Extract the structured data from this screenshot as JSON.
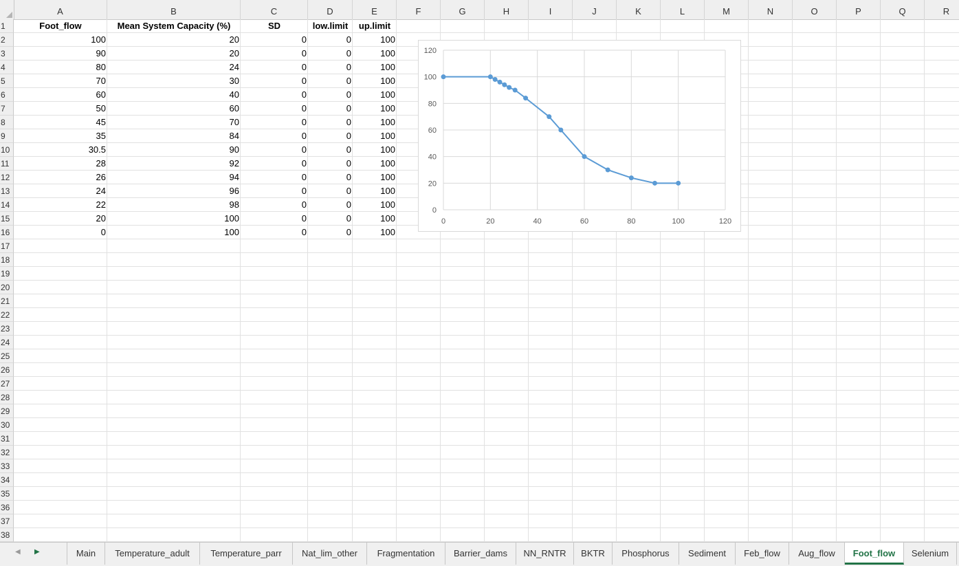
{
  "columns": [
    "A",
    "B",
    "C",
    "D",
    "E",
    "F",
    "G",
    "H",
    "I",
    "J",
    "K",
    "L",
    "M",
    "N",
    "O",
    "P",
    "Q",
    "R"
  ],
  "row_count": 38,
  "headers": [
    "Foot_flow",
    "Mean System Capacity (%)",
    "SD",
    "low.limit",
    "up.limit"
  ],
  "rows": [
    [
      "100",
      "20",
      "0",
      "0",
      "100"
    ],
    [
      "90",
      "20",
      "0",
      "0",
      "100"
    ],
    [
      "80",
      "24",
      "0",
      "0",
      "100"
    ],
    [
      "70",
      "30",
      "0",
      "0",
      "100"
    ],
    [
      "60",
      "40",
      "0",
      "0",
      "100"
    ],
    [
      "50",
      "60",
      "0",
      "0",
      "100"
    ],
    [
      "45",
      "70",
      "0",
      "0",
      "100"
    ],
    [
      "35",
      "84",
      "0",
      "0",
      "100"
    ],
    [
      "30.5",
      "90",
      "0",
      "0",
      "100"
    ],
    [
      "28",
      "92",
      "0",
      "0",
      "100"
    ],
    [
      "26",
      "94",
      "0",
      "0",
      "100"
    ],
    [
      "24",
      "96",
      "0",
      "0",
      "100"
    ],
    [
      "22",
      "98",
      "0",
      "0",
      "100"
    ],
    [
      "20",
      "100",
      "0",
      "0",
      "100"
    ],
    [
      "0",
      "100",
      "0",
      "0",
      "100"
    ]
  ],
  "chart_data": {
    "type": "line",
    "title": "",
    "xlabel": "",
    "ylabel": "",
    "xlim": [
      0,
      120
    ],
    "ylim": [
      0,
      120
    ],
    "xticks": [
      0,
      20,
      40,
      60,
      80,
      100,
      120
    ],
    "yticks": [
      0,
      20,
      40,
      60,
      80,
      100,
      120
    ],
    "grid": true,
    "legend": "none",
    "series": [
      {
        "x": [
          0,
          20,
          22,
          24,
          26,
          28,
          30.5,
          35,
          45,
          50,
          60,
          70,
          80,
          90,
          100
        ],
        "y": [
          100,
          100,
          98,
          96,
          94,
          92,
          90,
          84,
          70,
          60,
          40,
          30,
          24,
          20,
          20
        ],
        "color": "#5b9bd5"
      }
    ]
  },
  "tabs": {
    "prev_arrow": "◀",
    "next_arrow": "▶",
    "items": [
      "Main",
      "Temperature_adult",
      "Temperature_parr",
      "Nat_lim_other",
      "Fragmentation",
      "Barrier_dams",
      "NN_RNTR",
      "BKTR",
      "Phosphorus",
      "Sediment",
      "Feb_flow",
      "Aug_flow",
      "Foot_flow",
      "Selenium"
    ],
    "active": "Foot_flow"
  },
  "colors": {
    "accent": "#217346",
    "series": "#5b9bd5"
  }
}
